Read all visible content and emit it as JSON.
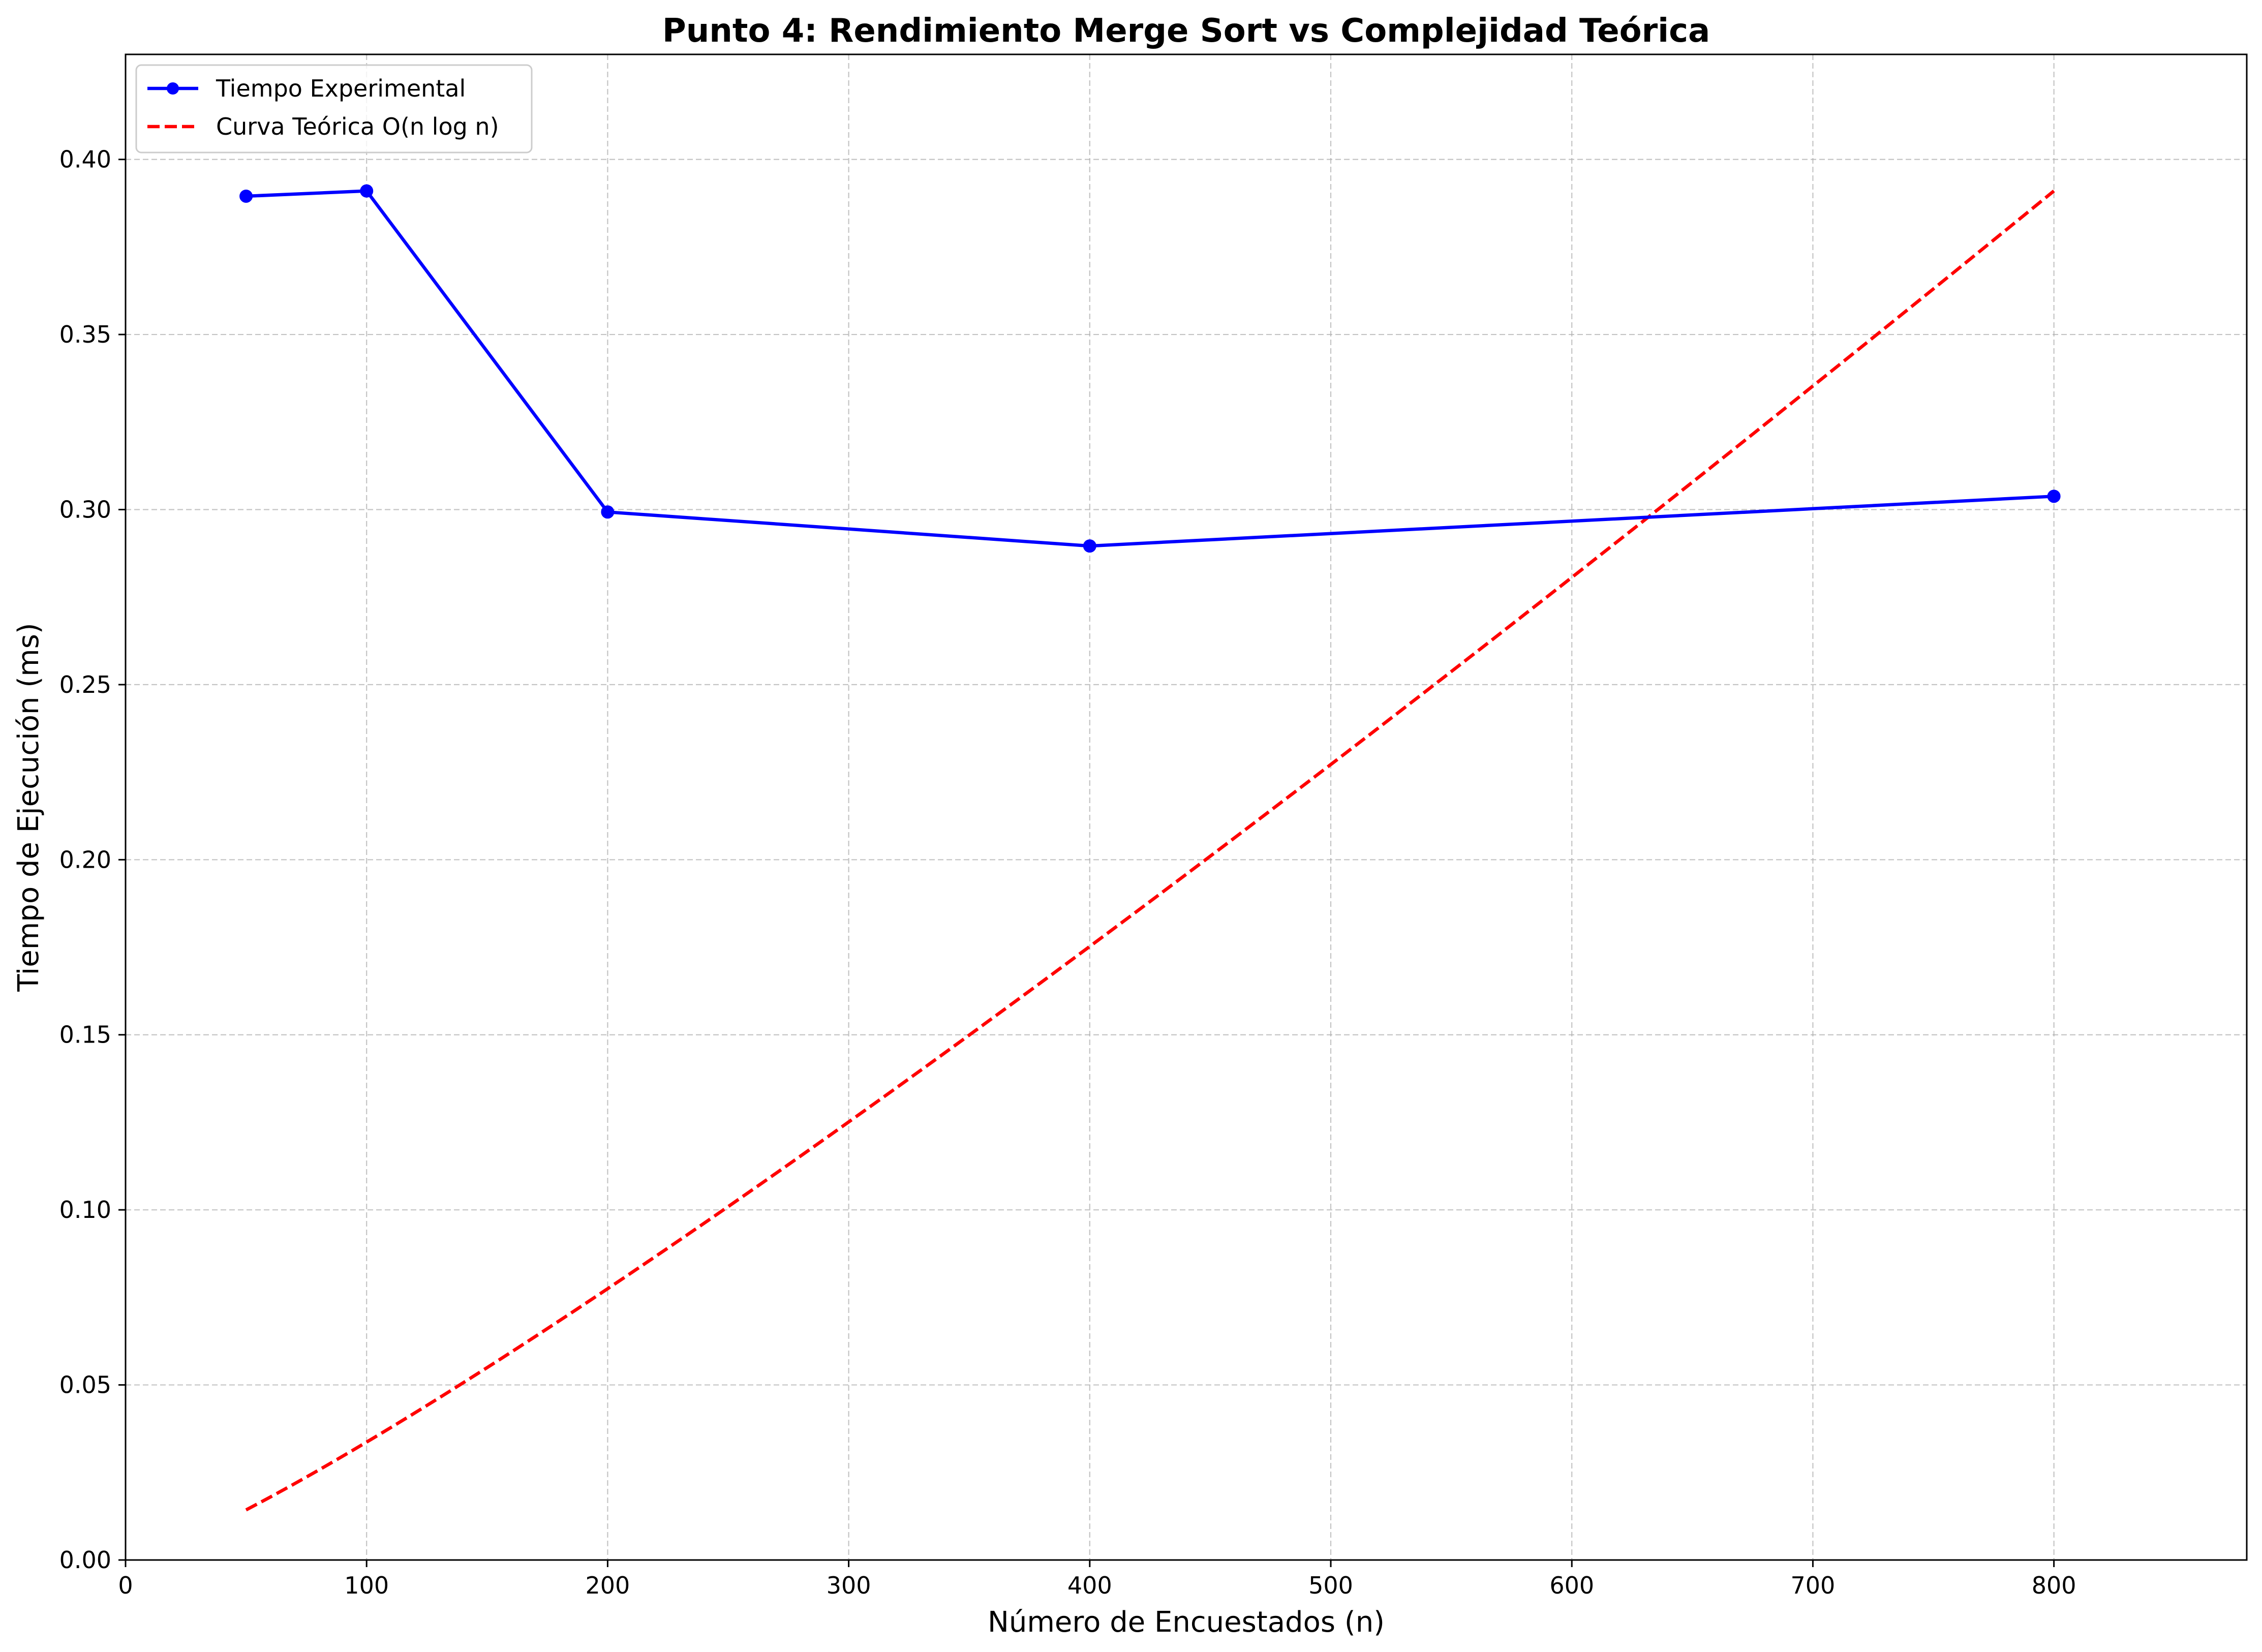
{
  "chart_data": {
    "type": "line",
    "title": "Punto 4: Rendimiento Merge Sort vs Complejidad Teórica",
    "xlabel": "Número de Encuestados (n)",
    "ylabel": "Tiempo de Ejecución (ms)",
    "xlim": [
      0,
      880
    ],
    "ylim": [
      0,
      0.43
    ],
    "x_ticks": [
      0,
      100,
      200,
      300,
      400,
      500,
      600,
      700,
      800
    ],
    "y_ticks": [
      0.0,
      0.05,
      0.1,
      0.15,
      0.2,
      0.25,
      0.3,
      0.35,
      0.4
    ],
    "x_tick_labels": [
      "0",
      "100",
      "200",
      "300",
      "400",
      "500",
      "600",
      "700",
      "800"
    ],
    "y_tick_labels": [
      "0.00",
      "0.05",
      "0.10",
      "0.15",
      "0.20",
      "0.25",
      "0.30",
      "0.35",
      "0.40"
    ],
    "grid": true,
    "legend_position": "top-left",
    "series": [
      {
        "name": "Tiempo Experimental",
        "color": "#0000ff",
        "style": "solid",
        "marker": "circle",
        "x": [
          50,
          100,
          200,
          400,
          800
        ],
        "y": [
          0.3895,
          0.391,
          0.2993,
          0.2896,
          0.3038
        ]
      },
      {
        "name": "Curva Teórica O(n log n)",
        "color": "#ff0000",
        "style": "dashed",
        "marker": "none",
        "formula": "n*log(n)",
        "x_range": [
          50,
          800
        ],
        "end_value": 0.391
      }
    ]
  }
}
